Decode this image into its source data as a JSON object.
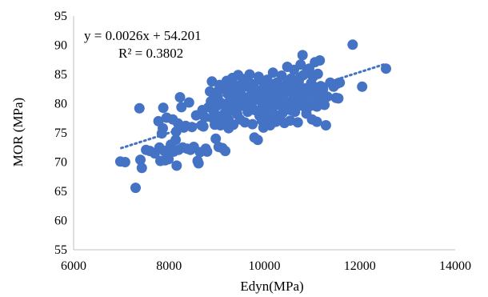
{
  "chart_data": {
    "type": "scatter",
    "title": "",
    "xlabel": "Edyn(MPa)",
    "ylabel": "MOR (MPa)",
    "xlim": [
      6000,
      14000
    ],
    "ylim": [
      55,
      95
    ],
    "x_ticks": [
      "6000",
      "8000",
      "10000",
      "12000",
      "14000"
    ],
    "y_ticks": [
      "55",
      "60",
      "65",
      "70",
      "75",
      "80",
      "85",
      "90",
      "95"
    ],
    "grid": false,
    "legend": "none",
    "series_color": "#4472C4",
    "trendline": {
      "type": "linear",
      "slope": 0.0026,
      "intercept": 54.201,
      "x_range": [
        7000,
        12550
      ],
      "style": "dotted",
      "equation_label": "y = 0.0026x + 54.201",
      "r2_label": "R² = 0.3802"
    },
    "points": [
      [
        6980,
        70.1
      ],
      [
        7080,
        70.0
      ],
      [
        7300,
        65.6
      ],
      [
        7380,
        79.2
      ],
      [
        7400,
        70.4
      ],
      [
        7430,
        69.0
      ],
      [
        7520,
        72.1
      ],
      [
        7600,
        71.9
      ],
      [
        7700,
        71.5
      ],
      [
        7780,
        77.0
      ],
      [
        7800,
        72.5
      ],
      [
        7820,
        70.2
      ],
      [
        7850,
        74.9
      ],
      [
        7870,
        75.8
      ],
      [
        7880,
        79.3
      ],
      [
        7900,
        71.9
      ],
      [
        7920,
        70.3
      ],
      [
        7950,
        77.6
      ],
      [
        7990,
        70.5
      ],
      [
        8000,
        72.2
      ],
      [
        8040,
        73.0
      ],
      [
        8080,
        77.3
      ],
      [
        8100,
        71.8
      ],
      [
        8140,
        73.8
      ],
      [
        8160,
        69.4
      ],
      [
        8190,
        76.6
      ],
      [
        8200,
        72.1
      ],
      [
        8230,
        81.1
      ],
      [
        8260,
        79.4
      ],
      [
        8290,
        72.5
      ],
      [
        8310,
        75.9
      ],
      [
        8350,
        76.2
      ],
      [
        8380,
        72.3
      ],
      [
        8420,
        80.2
      ],
      [
        8450,
        72.1
      ],
      [
        8480,
        76.0
      ],
      [
        8520,
        72.6
      ],
      [
        8570,
        78.0
      ],
      [
        8600,
        70.2
      ],
      [
        8620,
        69.8
      ],
      [
        8650,
        71.7
      ],
      [
        8680,
        76.3
      ],
      [
        8720,
        76.1
      ],
      [
        8750,
        77.7
      ],
      [
        8770,
        72.3
      ],
      [
        8800,
        71.8
      ],
      [
        8830,
        79.4
      ],
      [
        8860,
        82.1
      ],
      [
        8880,
        80.4
      ],
      [
        8900,
        83.8
      ],
      [
        8920,
        77.5
      ],
      [
        8940,
        78.6
      ],
      [
        8960,
        76.4
      ],
      [
        8980,
        74.0
      ],
      [
        9000,
        79.6
      ],
      [
        9020,
        81.2
      ],
      [
        9040,
        72.6
      ],
      [
        9060,
        83.2
      ],
      [
        9080,
        76.3
      ],
      [
        9100,
        80.1
      ],
      [
        9120,
        72.4
      ],
      [
        9140,
        82.6
      ],
      [
        9160,
        78.3
      ],
      [
        9180,
        71.9
      ],
      [
        9200,
        79.1
      ],
      [
        9210,
        83.9
      ],
      [
        9230,
        81.7
      ],
      [
        9250,
        77.2
      ],
      [
        9270,
        80.4
      ],
      [
        9290,
        82.9
      ],
      [
        9310,
        78.8
      ],
      [
        9330,
        84.4
      ],
      [
        9350,
        76.4
      ],
      [
        9370,
        81.3
      ],
      [
        9390,
        79.6
      ],
      [
        9410,
        83.1
      ],
      [
        9430,
        78.2
      ],
      [
        9450,
        84.9
      ],
      [
        9470,
        80.6
      ],
      [
        9490,
        77.3
      ],
      [
        9510,
        82.4
      ],
      [
        9530,
        79.8
      ],
      [
        9550,
        84.2
      ],
      [
        9570,
        81.1
      ],
      [
        9590,
        76.8
      ],
      [
        9610,
        83.6
      ],
      [
        9630,
        80.2
      ],
      [
        9650,
        78.6
      ],
      [
        9670,
        82.9
      ],
      [
        9690,
        85.0
      ],
      [
        9710,
        79.3
      ],
      [
        9730,
        81.8
      ],
      [
        9750,
        76.5
      ],
      [
        9770,
        83.3
      ],
      [
        9790,
        74.2
      ],
      [
        9800,
        78.9
      ],
      [
        9820,
        82.1
      ],
      [
        9840,
        80.7
      ],
      [
        9860,
        73.8
      ],
      [
        9880,
        84.6
      ],
      [
        9900,
        77.9
      ],
      [
        9920,
        81.4
      ],
      [
        9940,
        79.1
      ],
      [
        9960,
        83.8
      ],
      [
        9980,
        75.9
      ],
      [
        10000,
        82.6
      ],
      [
        10020,
        80.1
      ],
      [
        10040,
        77.4
      ],
      [
        10060,
        84.1
      ],
      [
        10080,
        81.7
      ],
      [
        10100,
        79.0
      ],
      [
        10120,
        76.3
      ],
      [
        10140,
        82.9
      ],
      [
        10160,
        80.5
      ],
      [
        10180,
        85.3
      ],
      [
        10200,
        78.2
      ],
      [
        10220,
        81.1
      ],
      [
        10240,
        76.9
      ],
      [
        10260,
        83.6
      ],
      [
        10280,
        79.8
      ],
      [
        10300,
        82.3
      ],
      [
        10320,
        77.6
      ],
      [
        10340,
        80.9
      ],
      [
        10360,
        84.8
      ],
      [
        10380,
        78.4
      ],
      [
        10400,
        81.6
      ],
      [
        10420,
        76.7
      ],
      [
        10440,
        83.2
      ],
      [
        10460,
        79.5
      ],
      [
        10480,
        86.3
      ],
      [
        10500,
        80.2
      ],
      [
        10520,
        82.7
      ],
      [
        10540,
        77.1
      ],
      [
        10560,
        84.3
      ],
      [
        10580,
        79.0
      ],
      [
        10600,
        81.5
      ],
      [
        10620,
        85.8
      ],
      [
        10640,
        78.6
      ],
      [
        10660,
        82.1
      ],
      [
        10680,
        80.4
      ],
      [
        10700,
        76.8
      ],
      [
        10720,
        83.7
      ],
      [
        10740,
        79.7
      ],
      [
        10760,
        86.7
      ],
      [
        10780,
        81.3
      ],
      [
        10800,
        88.3
      ],
      [
        10820,
        84.9
      ],
      [
        10840,
        80.8
      ],
      [
        10860,
        82.6
      ],
      [
        10880,
        78.3
      ],
      [
        10900,
        85.6
      ],
      [
        10920,
        81.9
      ],
      [
        10940,
        86.0
      ],
      [
        10960,
        79.6
      ],
      [
        10980,
        83.5
      ],
      [
        11000,
        77.3
      ],
      [
        11020,
        84.6
      ],
      [
        11040,
        80.5
      ],
      [
        11060,
        87.1
      ],
      [
        11080,
        82.8
      ],
      [
        11100,
        76.9
      ],
      [
        11120,
        85.1
      ],
      [
        11140,
        81.2
      ],
      [
        11160,
        87.4
      ],
      [
        11180,
        83.0
      ],
      [
        11200,
        80.3
      ],
      [
        11230,
        82.5
      ],
      [
        11260,
        79.8
      ],
      [
        11290,
        76.3
      ],
      [
        11320,
        81.2
      ],
      [
        11380,
        83.6
      ],
      [
        11450,
        82.9
      ],
      [
        11500,
        81.0
      ],
      [
        11520,
        83.4
      ],
      [
        11550,
        80.9
      ],
      [
        11580,
        83.6
      ],
      [
        11850,
        90.1
      ],
      [
        12050,
        82.9
      ],
      [
        12550,
        86.0
      ],
      [
        8150,
        75.2
      ],
      [
        8700,
        78.9
      ],
      [
        9050,
        77.8
      ],
      [
        9250,
        75.8
      ],
      [
        9450,
        81.9
      ],
      [
        9650,
        84.4
      ],
      [
        9850,
        80.8
      ],
      [
        10050,
        78.6
      ],
      [
        10250,
        82.5
      ],
      [
        10450,
        80.2
      ],
      [
        10650,
        83.0
      ],
      [
        10850,
        79.4
      ],
      [
        11050,
        81.4
      ],
      [
        9150,
        76.9
      ],
      [
        9350,
        79.9
      ],
      [
        9550,
        82.9
      ],
      [
        9750,
        80.5
      ],
      [
        9950,
        77.1
      ],
      [
        10150,
        83.3
      ],
      [
        10350,
        81.0
      ],
      [
        10550,
        78.9
      ],
      [
        10750,
        84.5
      ],
      [
        10950,
        82.0
      ],
      [
        8950,
        80.9
      ],
      [
        9050,
        82.4
      ],
      [
        9300,
        83.4
      ],
      [
        9600,
        80.0
      ],
      [
        9900,
        82.2
      ],
      [
        10200,
        80.7
      ],
      [
        10500,
        83.9
      ],
      [
        10800,
        82.2
      ],
      [
        11100,
        79.5
      ]
    ]
  }
}
